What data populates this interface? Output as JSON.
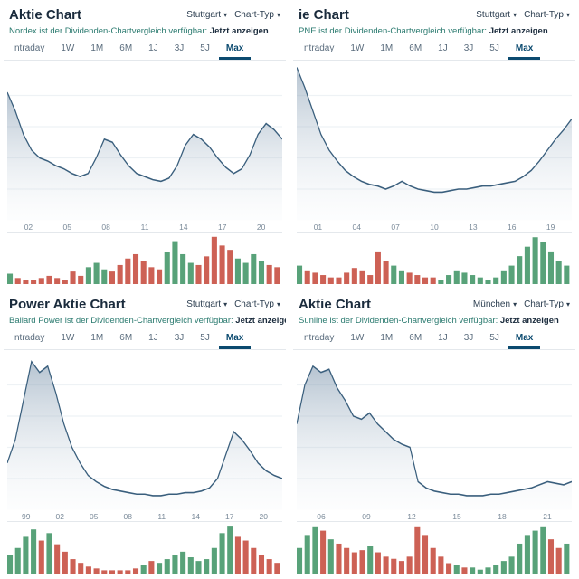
{
  "colors": {
    "title": "#1a2b3c",
    "subtitle": "#2a7a6f",
    "link": "#1a2b3c",
    "tab": "#5a6c7d",
    "tab_active": "#0b4a6f",
    "xaxis": "#7a8a99",
    "grid": "#eef2f5",
    "line": "#3a5f7d",
    "area_top": "#7a93ab",
    "area_bottom": "#e8eef3",
    "vol_up": "#2e8b57",
    "vol_down": "#c0392b",
    "bg": "#ffffff"
  },
  "common": {
    "tabs": [
      "Intraday",
      "1W",
      "1M",
      "6M",
      "1J",
      "3J",
      "5J",
      "Max"
    ],
    "active_tab": "Max",
    "sub_prefix_tpl": " ist der Dividenden-Chartvergleich verfügbar: ",
    "sub_link": "Jetzt anzeigen",
    "chart_type_label": "Chart-Typ",
    "title_suffix": " Aktie Chart"
  },
  "panels": [
    {
      "id": "nordex",
      "title_visible": "Aktie Chart",
      "stock": "Nordex",
      "exchange": "Stuttgart",
      "xticks": [
        "02",
        "05",
        "08",
        "11",
        "14",
        "17",
        "20"
      ],
      "ylim": [
        0,
        100
      ],
      "series": [
        82,
        70,
        55,
        45,
        40,
        38,
        35,
        33,
        30,
        28,
        30,
        40,
        52,
        50,
        42,
        35,
        30,
        28,
        26,
        25,
        27,
        35,
        48,
        55,
        52,
        47,
        40,
        34,
        30,
        33,
        42,
        55,
        62,
        58,
        52
      ],
      "volume": [
        5,
        3,
        2,
        2,
        3,
        4,
        3,
        2,
        6,
        4,
        8,
        10,
        7,
        6,
        9,
        12,
        14,
        11,
        8,
        7,
        15,
        20,
        14,
        10,
        9,
        13,
        22,
        18,
        16,
        12,
        10,
        14,
        11,
        9,
        8
      ],
      "vol_max": 24
    },
    {
      "id": "pne",
      "title_visible": "ie Chart",
      "stock": "PNE",
      "exchange": "Stuttgart",
      "xticks": [
        "01",
        "04",
        "07",
        "10",
        "13",
        "16",
        "19"
      ],
      "ylim": [
        0,
        100
      ],
      "series": [
        98,
        85,
        70,
        55,
        45,
        38,
        32,
        28,
        25,
        23,
        22,
        20,
        22,
        25,
        22,
        20,
        19,
        18,
        18,
        19,
        20,
        20,
        21,
        22,
        22,
        23,
        24,
        25,
        28,
        32,
        38,
        45,
        52,
        58,
        65
      ],
      "volume": [
        8,
        6,
        5,
        4,
        3,
        3,
        5,
        7,
        6,
        4,
        14,
        10,
        8,
        6,
        5,
        4,
        3,
        3,
        2,
        4,
        6,
        5,
        4,
        3,
        2,
        3,
        6,
        8,
        12,
        16,
        20,
        18,
        14,
        10,
        8
      ],
      "vol_max": 22
    },
    {
      "id": "ballard",
      "title_visible": "Power Aktie Chart",
      "stock": "Ballard Power",
      "exchange": "Stuttgart",
      "xticks": [
        "99",
        "02",
        "05",
        "08",
        "11",
        "14",
        "17",
        "20"
      ],
      "ylim": [
        0,
        100
      ],
      "series": [
        30,
        45,
        70,
        95,
        88,
        92,
        75,
        55,
        40,
        30,
        22,
        18,
        15,
        13,
        12,
        11,
        10,
        10,
        9,
        9,
        10,
        10,
        11,
        11,
        12,
        14,
        20,
        35,
        50,
        45,
        38,
        30,
        25,
        22,
        20
      ],
      "volume": [
        10,
        14,
        20,
        24,
        18,
        22,
        16,
        12,
        8,
        6,
        4,
        3,
        2,
        2,
        2,
        2,
        3,
        5,
        7,
        6,
        8,
        10,
        12,
        9,
        7,
        8,
        14,
        22,
        26,
        20,
        18,
        14,
        10,
        8,
        6
      ],
      "vol_max": 28
    },
    {
      "id": "sunline",
      "title_visible": "Aktie Chart",
      "stock": "Sunline",
      "exchange": "München",
      "xticks": [
        "06",
        "09",
        "12",
        "15",
        "18",
        "21"
      ],
      "ylim": [
        0,
        100
      ],
      "series": [
        55,
        80,
        92,
        88,
        90,
        78,
        70,
        60,
        58,
        62,
        55,
        50,
        45,
        42,
        40,
        18,
        14,
        12,
        11,
        10,
        10,
        9,
        9,
        9,
        10,
        10,
        11,
        12,
        13,
        14,
        16,
        18,
        17,
        16,
        18
      ],
      "volume": [
        12,
        18,
        22,
        20,
        16,
        14,
        12,
        10,
        11,
        13,
        10,
        8,
        7,
        6,
        8,
        22,
        18,
        12,
        8,
        5,
        4,
        3,
        3,
        2,
        3,
        4,
        6,
        8,
        14,
        18,
        20,
        22,
        16,
        12,
        14
      ],
      "vol_max": 24
    }
  ]
}
